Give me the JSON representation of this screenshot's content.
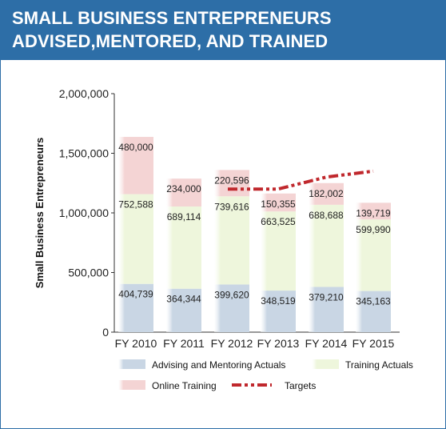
{
  "header": {
    "title_line1": "SMALL BUSINESS ENTREPRENEURS",
    "title_line2": "ADVISED,MENTORED, AND TRAINED"
  },
  "colors": {
    "header_bg": "#2d6ea7",
    "advising": "#c9d6e4",
    "training": "#eef6dc",
    "online": "#f4d4d4",
    "targets": "#c0282d"
  },
  "chart_data": {
    "type": "bar",
    "stacked": true,
    "ylabel": "Small Business Entrepreneurs",
    "ylim": [
      0,
      2000000
    ],
    "yticks": [
      0,
      500000,
      1000000,
      1500000,
      2000000
    ],
    "ytick_labels": [
      "0",
      "500,000",
      "1,000,000",
      "1,500,000",
      "2,000,000"
    ],
    "categories": [
      "FY 2010",
      "FY 2011",
      "FY 2012",
      "FY 2013",
      "FY 2014",
      "FY 2015"
    ],
    "series": [
      {
        "name": "Advising and Mentoring Actuals",
        "values": [
          404739,
          364344,
          399620,
          348519,
          379210,
          345163
        ],
        "labels": [
          "404,739",
          "364,344",
          "399,620",
          "348,519",
          "379,210",
          "345,163"
        ]
      },
      {
        "name": "Training Actuals",
        "values": [
          752588,
          689114,
          739616,
          663525,
          688688,
          599990
        ],
        "labels": [
          "752,588",
          "689,114",
          "739,616",
          "663,525",
          "688,688",
          "599,990"
        ]
      },
      {
        "name": "Online Training",
        "values": [
          480000,
          234000,
          220596,
          150355,
          182002,
          139719
        ],
        "labels": [
          "480,000",
          "234,000",
          "220,596",
          "150,355",
          "182,002",
          "139,719"
        ]
      }
    ],
    "targets": {
      "name": "Targets",
      "x": [
        "FY 2012",
        "FY 2013",
        "FY 2014",
        "FY 2015"
      ],
      "values": [
        1200000,
        1200000,
        1300000,
        1350000
      ]
    },
    "legend": {
      "placement": "bottom",
      "items": [
        "Advising and Mentoring Actuals",
        "Training Actuals",
        "Online Training",
        "Targets"
      ]
    },
    "grid": false
  }
}
